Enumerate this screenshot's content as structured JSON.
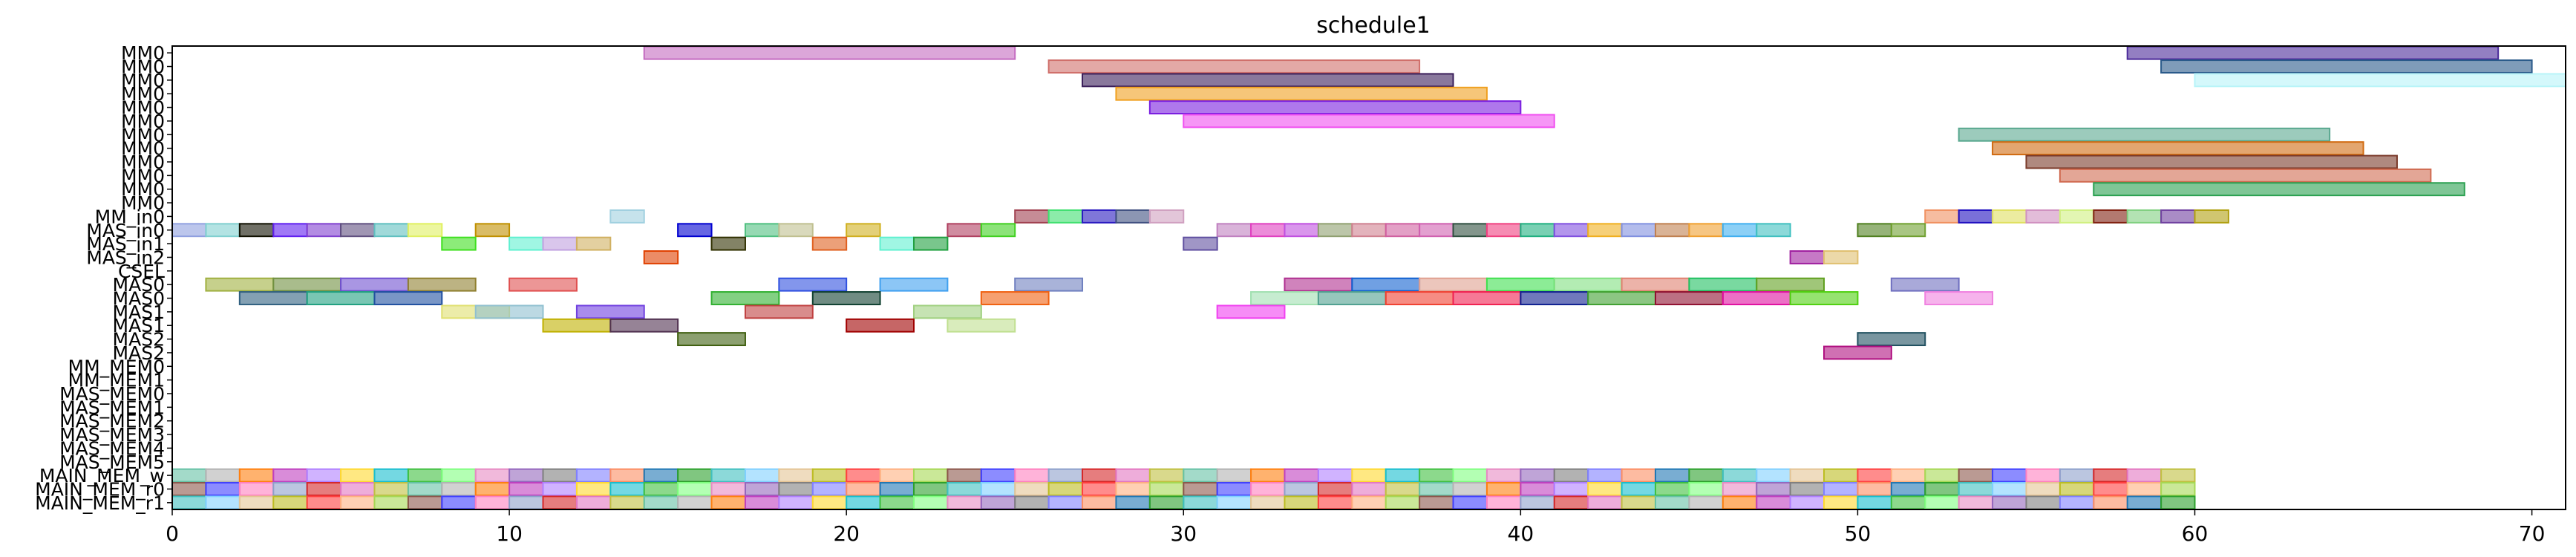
{
  "chart_data": {
    "type": "gantt",
    "title": "schedule1",
    "xlabel": "",
    "ylabel": "",
    "xlim": [
      0,
      71
    ],
    "xticks": [
      0,
      10,
      20,
      30,
      40,
      50,
      60,
      70
    ],
    "grid": false,
    "rows": [
      "MM0",
      "MM0",
      "MM0",
      "MM0",
      "MM0",
      "MM0",
      "MM0",
      "MM0",
      "MM0",
      "MM0",
      "MM0",
      "MM0",
      "MM_in0",
      "MAS_in0",
      "MAS_in1",
      "MAS_in2",
      "CSEL",
      "MAS0",
      "MAS0",
      "MAS1",
      "MAS1",
      "MAS2",
      "MAS2",
      "MM_MEM0",
      "MM_MEM1",
      "MAS_MEM0",
      "MAS_MEM1",
      "MAS_MEM2",
      "MAS_MEM3",
      "MAS_MEM4",
      "MAS_MEM5",
      "MAIN_MEM_w",
      "MAIN_MEM_r0",
      "MAIN_MEM_r1"
    ],
    "palette": [
      "#66c2a5",
      "#fc8d62",
      "#8da0cb",
      "#e78ac3",
      "#a6d854",
      "#ffd92f",
      "#e5c494",
      "#b3b3b3",
      "#1f77b4",
      "#d62728",
      "#9467bd",
      "#8c564b",
      "#17becf",
      "#bcbd22",
      "#ff7f0e",
      "#2ca02c",
      "#e377c2",
      "#7f7f7f",
      "#4040ff",
      "#40c040",
      "#ff4040",
      "#c040c0",
      "#40c0c0",
      "#c0c040",
      "#8080ff",
      "#ff80c0",
      "#80ff80",
      "#ffb080",
      "#b080ff",
      "#80d0ff"
    ],
    "series": [
      {
        "row": 0,
        "tasks": [
          [
            14,
            25,
            "#c46bc0"
          ],
          [
            58,
            69,
            "#4b2a9a"
          ]
        ]
      },
      {
        "row": 1,
        "tasks": [
          [
            26,
            37,
            "#d0706b"
          ],
          [
            59,
            70,
            "#2a5a8a"
          ]
        ]
      },
      {
        "row": 2,
        "tasks": [
          [
            27,
            38,
            "#3a1e5a"
          ],
          [
            60,
            71,
            "#b8f4f8"
          ]
        ]
      },
      {
        "row": 3,
        "tasks": [
          [
            28,
            39,
            "#f0a020"
          ]
        ]
      },
      {
        "row": 4,
        "tasks": [
          [
            29,
            40,
            "#7a1ee0"
          ]
        ]
      },
      {
        "row": 5,
        "tasks": [
          [
            30,
            41,
            "#f050f0"
          ]
        ]
      },
      {
        "row": 6,
        "tasks": [
          [
            53,
            64,
            "#5aa890"
          ]
        ]
      },
      {
        "row": 7,
        "tasks": [
          [
            54,
            65,
            "#d06a10"
          ]
        ]
      },
      {
        "row": 8,
        "tasks": [
          [
            55,
            66,
            "#7a3a2a"
          ]
        ]
      },
      {
        "row": 9,
        "tasks": [
          [
            56,
            67,
            "#d06a50"
          ]
        ]
      },
      {
        "row": 10,
        "tasks": [
          [
            57,
            68,
            "#2aa050"
          ]
        ]
      },
      {
        "row": 12,
        "tasks": [
          [
            13,
            14,
            "#a0d0e0"
          ],
          [
            25,
            26,
            "#a04050"
          ],
          [
            26,
            27,
            "#40e070"
          ],
          [
            27,
            28,
            "#2a1ac0"
          ],
          [
            28,
            29,
            "#405080"
          ],
          [
            29,
            30,
            "#d0a0c0"
          ],
          [
            52,
            53,
            "#f09060"
          ],
          [
            53,
            54,
            "#2010c0"
          ],
          [
            54,
            55,
            "#e0e060"
          ],
          [
            55,
            56,
            "#d090c0"
          ],
          [
            56,
            57,
            "#d0f080"
          ],
          [
            57,
            58,
            "#802010"
          ],
          [
            58,
            59,
            "#80d080"
          ],
          [
            59,
            60,
            "#7040a0"
          ],
          [
            60,
            61,
            "#b0a010"
          ]
        ]
      },
      {
        "row": 13,
        "tasks": [
          [
            0,
            1,
            "#90a0e0"
          ],
          [
            1,
            2,
            "#80d0d0"
          ],
          [
            2,
            3,
            "#101000"
          ],
          [
            3,
            4,
            "#6020f0"
          ],
          [
            4,
            5,
            "#8040d0"
          ],
          [
            5,
            6,
            "#605080"
          ],
          [
            6,
            7,
            "#60c0c0"
          ],
          [
            7,
            8,
            "#e0f060"
          ],
          [
            9,
            10,
            "#c09000"
          ],
          [
            15,
            16,
            "#0000d0"
          ],
          [
            17,
            18,
            "#50c080"
          ],
          [
            18,
            19,
            "#c0c090"
          ],
          [
            20,
            21,
            "#d0b020"
          ],
          [
            23,
            24,
            "#b04060"
          ],
          [
            24,
            25,
            "#40d020"
          ],
          [
            31,
            32,
            "#c080c0"
          ],
          [
            32,
            33,
            "#e040c0"
          ],
          [
            33,
            34,
            "#c050e0"
          ],
          [
            34,
            35,
            "#90a070"
          ],
          [
            35,
            36,
            "#d08090"
          ],
          [
            36,
            37,
            "#d060a0"
          ],
          [
            37,
            38,
            "#d060b0"
          ],
          [
            38,
            39,
            "#305040"
          ],
          [
            39,
            40,
            "#f04080"
          ],
          [
            40,
            41,
            "#20b080"
          ],
          [
            41,
            42,
            "#8050e0"
          ],
          [
            42,
            43,
            "#f0b020"
          ],
          [
            43,
            44,
            "#8090e0"
          ],
          [
            44,
            45,
            "#c08050"
          ],
          [
            45,
            46,
            "#f0a030"
          ],
          [
            46,
            47,
            "#40b0f0"
          ],
          [
            47,
            48,
            "#40c0c0"
          ],
          [
            50,
            51,
            "#508020"
          ],
          [
            51,
            52,
            "#70a030"
          ]
        ]
      },
      {
        "row": 14,
        "tasks": [
          [
            8,
            9,
            "#40e020"
          ],
          [
            10,
            11,
            "#60f0d0"
          ],
          [
            11,
            12,
            "#c0a0e0"
          ],
          [
            12,
            13,
            "#d0b060"
          ],
          [
            16,
            17,
            "#303000"
          ],
          [
            19,
            20,
            "#e06020"
          ],
          [
            21,
            22,
            "#60f0d0"
          ],
          [
            22,
            23,
            "#20a040"
          ],
          [
            30,
            31,
            "#6050a0"
          ]
        ]
      },
      {
        "row": 15,
        "tasks": [
          [
            14,
            15,
            "#e04000"
          ],
          [
            48,
            49,
            "#a020a0"
          ],
          [
            49,
            50,
            "#e0c070"
          ]
        ]
      },
      {
        "row": 17,
        "tasks": [
          [
            1,
            3,
            "#a0b040"
          ],
          [
            3,
            5,
            "#709040"
          ],
          [
            5,
            7,
            "#7050d0"
          ],
          [
            7,
            9,
            "#908030"
          ],
          [
            10,
            12,
            "#e05050"
          ],
          [
            18,
            20,
            "#3050e0"
          ],
          [
            21,
            23,
            "#40a0f0"
          ],
          [
            25,
            27,
            "#7080c0"
          ],
          [
            33,
            35,
            "#b03090"
          ],
          [
            35,
            37,
            "#1060d0"
          ],
          [
            37,
            39,
            "#e0a090"
          ],
          [
            39,
            41,
            "#40e050"
          ],
          [
            41,
            43,
            "#80e080"
          ],
          [
            43,
            45,
            "#e08070"
          ],
          [
            45,
            47,
            "#20c060"
          ],
          [
            47,
            49,
            "#60a020"
          ],
          [
            51,
            53,
            "#7070c0"
          ]
        ]
      },
      {
        "row": 18,
        "tasks": [
          [
            2,
            4,
            "#306080"
          ],
          [
            4,
            6,
            "#20a080"
          ],
          [
            6,
            8,
            "#2050a0"
          ],
          [
            16,
            18,
            "#30b030"
          ],
          [
            19,
            21,
            "#104030"
          ],
          [
            24,
            26,
            "#f06010"
          ],
          [
            32,
            34,
            "#a0e0b0"
          ],
          [
            34,
            36,
            "#50a090"
          ],
          [
            36,
            38,
            "#f04030"
          ],
          [
            38,
            40,
            "#f02050"
          ],
          [
            40,
            42,
            "#102090"
          ],
          [
            42,
            44,
            "#40a030"
          ],
          [
            44,
            46,
            "#901030"
          ],
          [
            46,
            48,
            "#e010a0"
          ],
          [
            48,
            50,
            "#50d010"
          ],
          [
            52,
            54,
            "#f080e0"
          ]
        ]
      },
      {
        "row": 19,
        "tasks": [
          [
            8,
            10,
            "#e0e070"
          ],
          [
            9,
            11,
            "#90c0d0"
          ],
          [
            12,
            14,
            "#7040e0"
          ],
          [
            17,
            19,
            "#c04040"
          ],
          [
            22,
            24,
            "#a0d080"
          ],
          [
            31,
            33,
            "#f040f0"
          ]
        ]
      },
      {
        "row": 20,
        "tasks": [
          [
            11,
            13,
            "#c0b000"
          ],
          [
            13,
            15,
            "#503050"
          ],
          [
            20,
            22,
            "#a00000"
          ],
          [
            23,
            25,
            "#c0e090"
          ]
        ]
      },
      {
        "row": 21,
        "tasks": [
          [
            15,
            17,
            "#406010"
          ],
          [
            50,
            52,
            "#205060"
          ]
        ]
      },
      {
        "row": 22,
        "tasks": [
          [
            49,
            51,
            "#b01080"
          ]
        ]
      }
    ],
    "memory_rows": {
      "start": 0,
      "end": 60,
      "rows": [
        31,
        32,
        33
      ]
    }
  }
}
